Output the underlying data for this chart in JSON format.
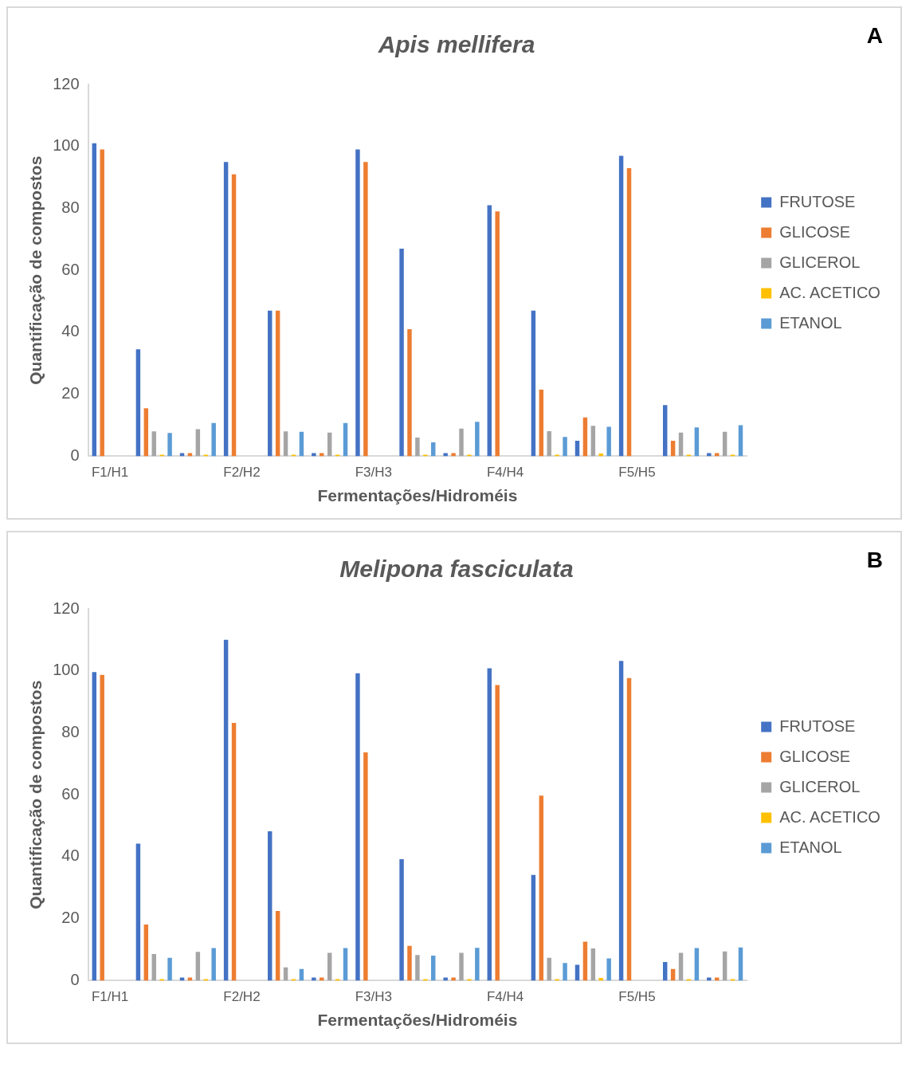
{
  "chart_data": [
    {
      "type": "bar",
      "title": "Apis mellifera",
      "xlabel": "Fermentações/Hidroméis",
      "ylabel": "Quantificação de compostos",
      "annotations": [
        "A"
      ],
      "categories": [
        "F1/H1",
        null,
        null,
        "F2/H2",
        null,
        null,
        "F3/H3",
        null,
        null,
        "F4/H4",
        null,
        null,
        "F5/H5",
        null,
        null
      ],
      "series": [
        {
          "name": "FRUTOSE",
          "color": "#4472c4",
          "values": [
            101,
            34.5,
            1,
            95,
            47,
            1,
            99,
            67,
            1,
            81,
            47,
            5,
            97,
            16.5,
            1
          ]
        },
        {
          "name": "GLICOSE",
          "color": "#ed7d31",
          "values": [
            99,
            15.5,
            1,
            91,
            47,
            1,
            95,
            41,
            1,
            79,
            21.5,
            12.5,
            93,
            5,
            1
          ]
        },
        {
          "name": "GLICEROL",
          "color": "#a5a5a5",
          "values": [
            0,
            8,
            8.7,
            0,
            8,
            7.6,
            0,
            6,
            8.9,
            0,
            8.1,
            9.8,
            0,
            7.6,
            7.9
          ]
        },
        {
          "name": "AC. ACETICO",
          "color": "#ffc000",
          "values": [
            0,
            0.5,
            0.5,
            0,
            0.5,
            0.5,
            0,
            0.5,
            0.5,
            0,
            0.5,
            0.9,
            0,
            0.5,
            0.5
          ]
        },
        {
          "name": "ETANOL",
          "color": "#5b9bd5",
          "values": [
            0,
            7.5,
            10.7,
            0,
            7.9,
            10.7,
            0,
            4.5,
            11.1,
            0,
            6.2,
            9.5,
            0,
            9.3,
            10
          ]
        }
      ],
      "ylim": [
        0,
        120
      ],
      "yticks": [
        0,
        20,
        40,
        60,
        80,
        100,
        120
      ],
      "grid": false,
      "legend": "right"
    },
    {
      "type": "bar",
      "title": "Melipona fasciculata",
      "xlabel": "Fermentações/Hidroméis",
      "ylabel": "Quantificação de compostos",
      "annotations": [
        "B"
      ],
      "categories": [
        "F1/H1",
        null,
        null,
        "F2/H2",
        null,
        null,
        "F3/H3",
        null,
        null,
        "F4/H4",
        null,
        null,
        "F5/H5",
        null,
        null
      ],
      "series": [
        {
          "name": "FRUTOSE",
          "color": "#4472c4",
          "values": [
            99.6,
            44.2,
            1,
            110,
            48.2,
            1,
            99.2,
            39.2,
            1,
            100.8,
            34.1,
            5.1,
            103.2,
            6,
            1
          ]
        },
        {
          "name": "GLICOSE",
          "color": "#ed7d31",
          "values": [
            98.7,
            18.1,
            1,
            83.2,
            22.5,
            1,
            73.7,
            11.2,
            1,
            95.4,
            59.7,
            12.6,
            97.7,
            3.8,
            1
          ]
        },
        {
          "name": "GLICEROL",
          "color": "#a5a5a5",
          "values": [
            0,
            8.6,
            9.3,
            0,
            4.3,
            9,
            0,
            8.3,
            9,
            0,
            7.4,
            10.4,
            0,
            9,
            9.4
          ]
        },
        {
          "name": "AC. ACETICO",
          "color": "#ffc000",
          "values": [
            0,
            0.5,
            0.5,
            0,
            0.5,
            0.5,
            0,
            0.5,
            0.5,
            0,
            0.5,
            0.9,
            0,
            0.5,
            0.5
          ]
        },
        {
          "name": "ETANOL",
          "color": "#5b9bd5",
          "values": [
            0,
            7.4,
            10.5,
            0,
            3.8,
            10.5,
            0,
            8.1,
            10.6,
            0,
            5.7,
            7.2,
            0,
            10.5,
            10.7
          ]
        }
      ],
      "ylim": [
        0,
        120
      ],
      "yticks": [
        0,
        20,
        40,
        60,
        80,
        100,
        120
      ],
      "grid": false,
      "legend": "right"
    }
  ]
}
